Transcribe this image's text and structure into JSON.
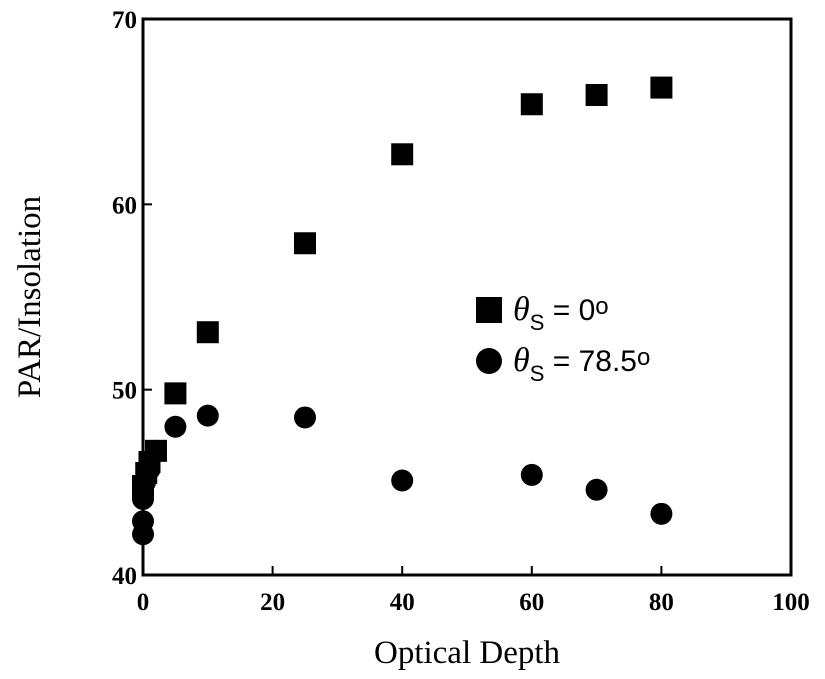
{
  "chart_data": {
    "type": "scatter",
    "xlabel": "Optical Depth",
    "ylabel": "PAR/Insolation",
    "xlim": [
      0,
      100
    ],
    "ylim": [
      40,
      70
    ],
    "xticks": [
      "0",
      "20",
      "40",
      "60",
      "80",
      "100"
    ],
    "yticks": [
      "40",
      "50",
      "60",
      "70"
    ],
    "grid": false,
    "legend_position": "right-middle",
    "series": [
      {
        "name": "θS = 0°",
        "legend_theta": "θ",
        "legend_sub": "S",
        "legend_rest": " = 0",
        "legend_deg": "o",
        "marker": "square",
        "color": "#000000",
        "points": [
          [
            0,
            44.8
          ],
          [
            0.5,
            45.5
          ],
          [
            1,
            46.1
          ],
          [
            2,
            46.7
          ],
          [
            5,
            49.8
          ],
          [
            10,
            53.1
          ],
          [
            25,
            57.9
          ],
          [
            40,
            62.7
          ],
          [
            60,
            65.4
          ],
          [
            70,
            65.9
          ],
          [
            80,
            66.3
          ]
        ]
      },
      {
        "name": "θS = 78.5°",
        "legend_theta": "θ",
        "legend_sub": "S",
        "legend_rest": " = 78.5",
        "legend_deg": "o",
        "marker": "circle",
        "color": "#000000",
        "points": [
          [
            0,
            42.2
          ],
          [
            0,
            42.9
          ],
          [
            0,
            44.1
          ],
          [
            0.3,
            45.0
          ],
          [
            1,
            45.7
          ],
          [
            2,
            46.7
          ],
          [
            5,
            48.0
          ],
          [
            10,
            48.6
          ],
          [
            25,
            48.5
          ],
          [
            40,
            45.1
          ],
          [
            60,
            45.4
          ],
          [
            70,
            44.6
          ],
          [
            80,
            43.3
          ]
        ]
      }
    ]
  }
}
